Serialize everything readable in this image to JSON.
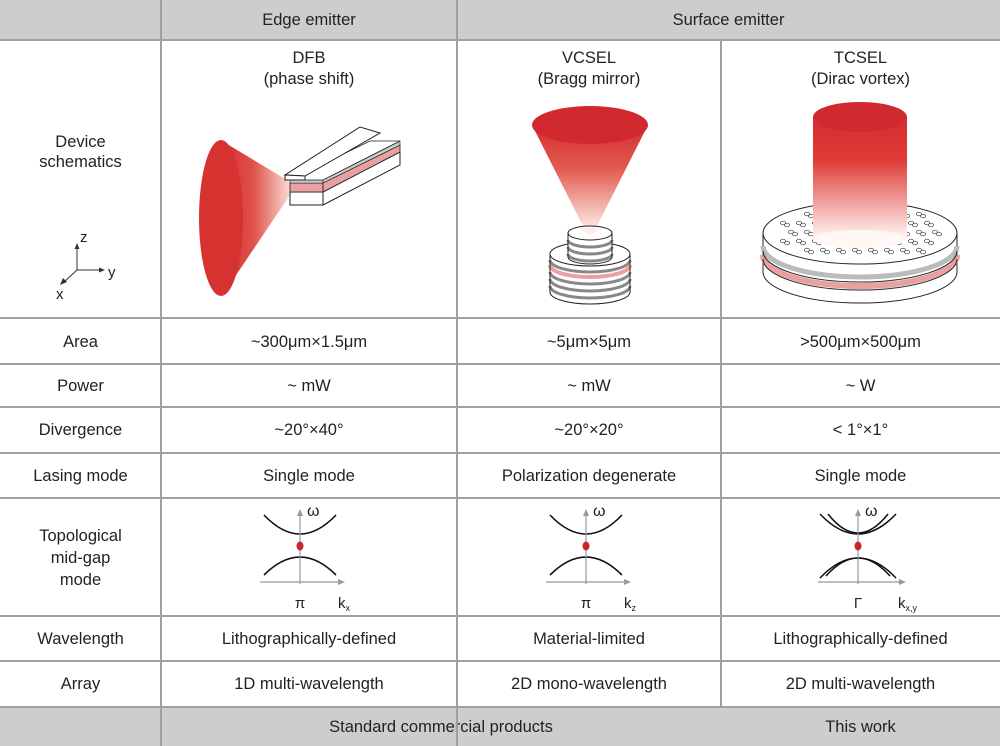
{
  "header": {
    "edge": "Edge emitter",
    "surface": "Surface emitter"
  },
  "row_labels": {
    "device": "Device\nschematics",
    "area": "Area",
    "power": "Power",
    "divergence": "Divergence",
    "lasing": "Lasing mode",
    "topo": "Topological\nmid-gap\nmode",
    "wavelength": "Wavelength",
    "array": "Array"
  },
  "axes": {
    "z": "z",
    "y": "y",
    "x": "x"
  },
  "columns": [
    {
      "name": "DFB",
      "sub": "(phase shift)",
      "area": "~300μm×1.5μm",
      "power": "~ mW",
      "divergence": "~20°×40°",
      "lasing": "Single mode",
      "wavelength": "Lithographically-defined",
      "array": "1D multi-wavelength",
      "band": {
        "omega": "ω",
        "point": "π",
        "k": "k",
        "k_sub": "x"
      }
    },
    {
      "name": "VCSEL",
      "sub": "(Bragg mirror)",
      "area": "~5μm×5μm",
      "power": "~ mW",
      "divergence": "~20°×20°",
      "lasing": "Polarization degenerate",
      "wavelength": "Material-limited",
      "array": "2D mono-wavelength",
      "band": {
        "omega": "ω",
        "point": "π",
        "k": "k",
        "k_sub": "z"
      }
    },
    {
      "name": "TCSEL",
      "sub": "(Dirac vortex)",
      "area": ">500μm×500μm",
      "power": "~ W",
      "divergence": "< 1°×1°",
      "lasing": "Single mode",
      "wavelength": "Lithographically-defined",
      "array": "2D multi-wavelength",
      "band": {
        "omega": "ω",
        "point": "Γ",
        "k": "k",
        "k_sub": "x,y"
      }
    }
  ],
  "footer": {
    "commercial": "Standard commercial products",
    "this_work": "This work"
  },
  "colors": {
    "beam": "#d42e32",
    "active_layer": "#e8a0a0",
    "grid": "#a0a0a0",
    "header_bg": "#cdcdcd",
    "midgap_dot": "#c8282c"
  }
}
